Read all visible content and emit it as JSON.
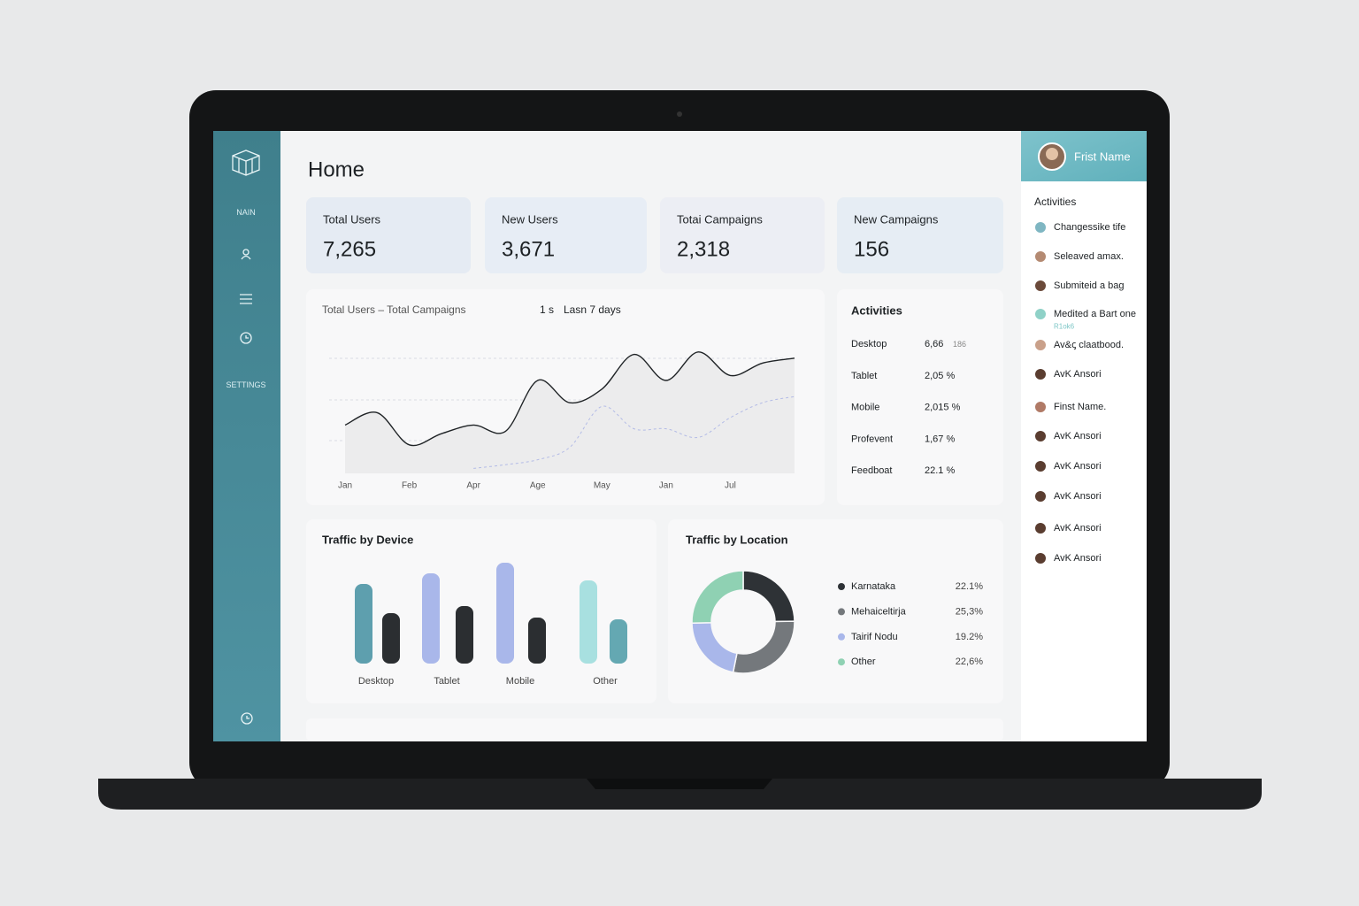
{
  "sidebar": {
    "nav": [
      "NAIN",
      "SETTINGS"
    ]
  },
  "header": {
    "title": "Home",
    "user": "Frist Name"
  },
  "stats": [
    {
      "label": "Total Users",
      "value": "7,265"
    },
    {
      "label": "New Users",
      "value": "3,671"
    },
    {
      "label": "Totai Campaigns",
      "value": "2,318"
    },
    {
      "label": "New Campaigns",
      "value": "156"
    }
  ],
  "line_chart": {
    "type": "line",
    "title": "Total Users – Total Campaigns",
    "range": [
      "1 s",
      "Lasn 7 days"
    ],
    "categories": [
      "Jan",
      null,
      "Feb",
      null,
      "Apr",
      null,
      "Age",
      null,
      "May",
      null,
      "Jan",
      null,
      "Jul",
      null,
      null
    ],
    "ylim": [
      0,
      100
    ],
    "series": [
      {
        "color": "#1f2326",
        "values": [
          39,
          49,
          23,
          32,
          39,
          34,
          75,
          57,
          68,
          96,
          75,
          98,
          79,
          89,
          93
        ]
      },
      {
        "color": "#b3bbe6",
        "dashed": true,
        "values": [
          null,
          null,
          null,
          null,
          4,
          7,
          11,
          21,
          54,
          36,
          36,
          29,
          45,
          57,
          62
        ]
      }
    ]
  },
  "activities": {
    "title": "Activities",
    "rows": [
      [
        "Desktop",
        "6,66",
        "186"
      ],
      [
        "Tablet",
        "2,05 %"
      ],
      [
        "Mobile",
        "2,015 %"
      ],
      [
        "Profevent",
        "1,67 %"
      ],
      [
        "Feedboat",
        "22.1 %"
      ]
    ]
  },
  "device_chart": {
    "type": "bar",
    "title": "Traffic by Device",
    "categories": [
      "Desktop",
      "Tablet",
      "Mobile",
      "Other"
    ],
    "ylim": [
      0,
      120
    ],
    "series": [
      {
        "colors": [
          "#5e9fae",
          "#a9b7ea",
          "#a9b7ea",
          "#a8e0e0"
        ],
        "values": [
          90,
          102,
          114,
          94
        ]
      },
      {
        "colors": [
          "#2b2e31",
          "#2b2e31",
          "#2b2e31",
          "#64a8b2"
        ],
        "values": [
          57,
          65,
          52,
          50
        ]
      }
    ]
  },
  "location_chart": {
    "type": "donut",
    "title": "Traffic by Location",
    "categories": [
      "Karnataka",
      "Mehaiceltirja",
      "Tairif Nodu",
      "Other"
    ],
    "values": [
      22.1,
      25.3,
      19.2,
      22.6
    ],
    "value_labels": [
      "22.1%",
      "25,3%",
      "19.2%",
      "22,6%"
    ],
    "colors": [
      "#2e3236",
      "#74787c",
      "#a9b7ea",
      "#8fd1b3"
    ]
  },
  "feed": {
    "title": "Activities",
    "items": [
      {
        "text": "Changessike tife"
      },
      {
        "text": "Seleaved amax."
      },
      {
        "text": "Submiteid a bag"
      },
      {
        "text": "Medited a Bart one",
        "sub": "R1ok6"
      },
      {
        "text": "Av&ꞔ claatbood."
      },
      {
        "text": "AvK Ansori"
      },
      {
        "text": "Finst Name."
      },
      {
        "text": "AvK Ansori"
      },
      {
        "text": "AvK Ansori"
      },
      {
        "text": "AvK Ansori"
      },
      {
        "text": "AvK Ansori"
      },
      {
        "text": "AvK Ansori"
      }
    ]
  }
}
